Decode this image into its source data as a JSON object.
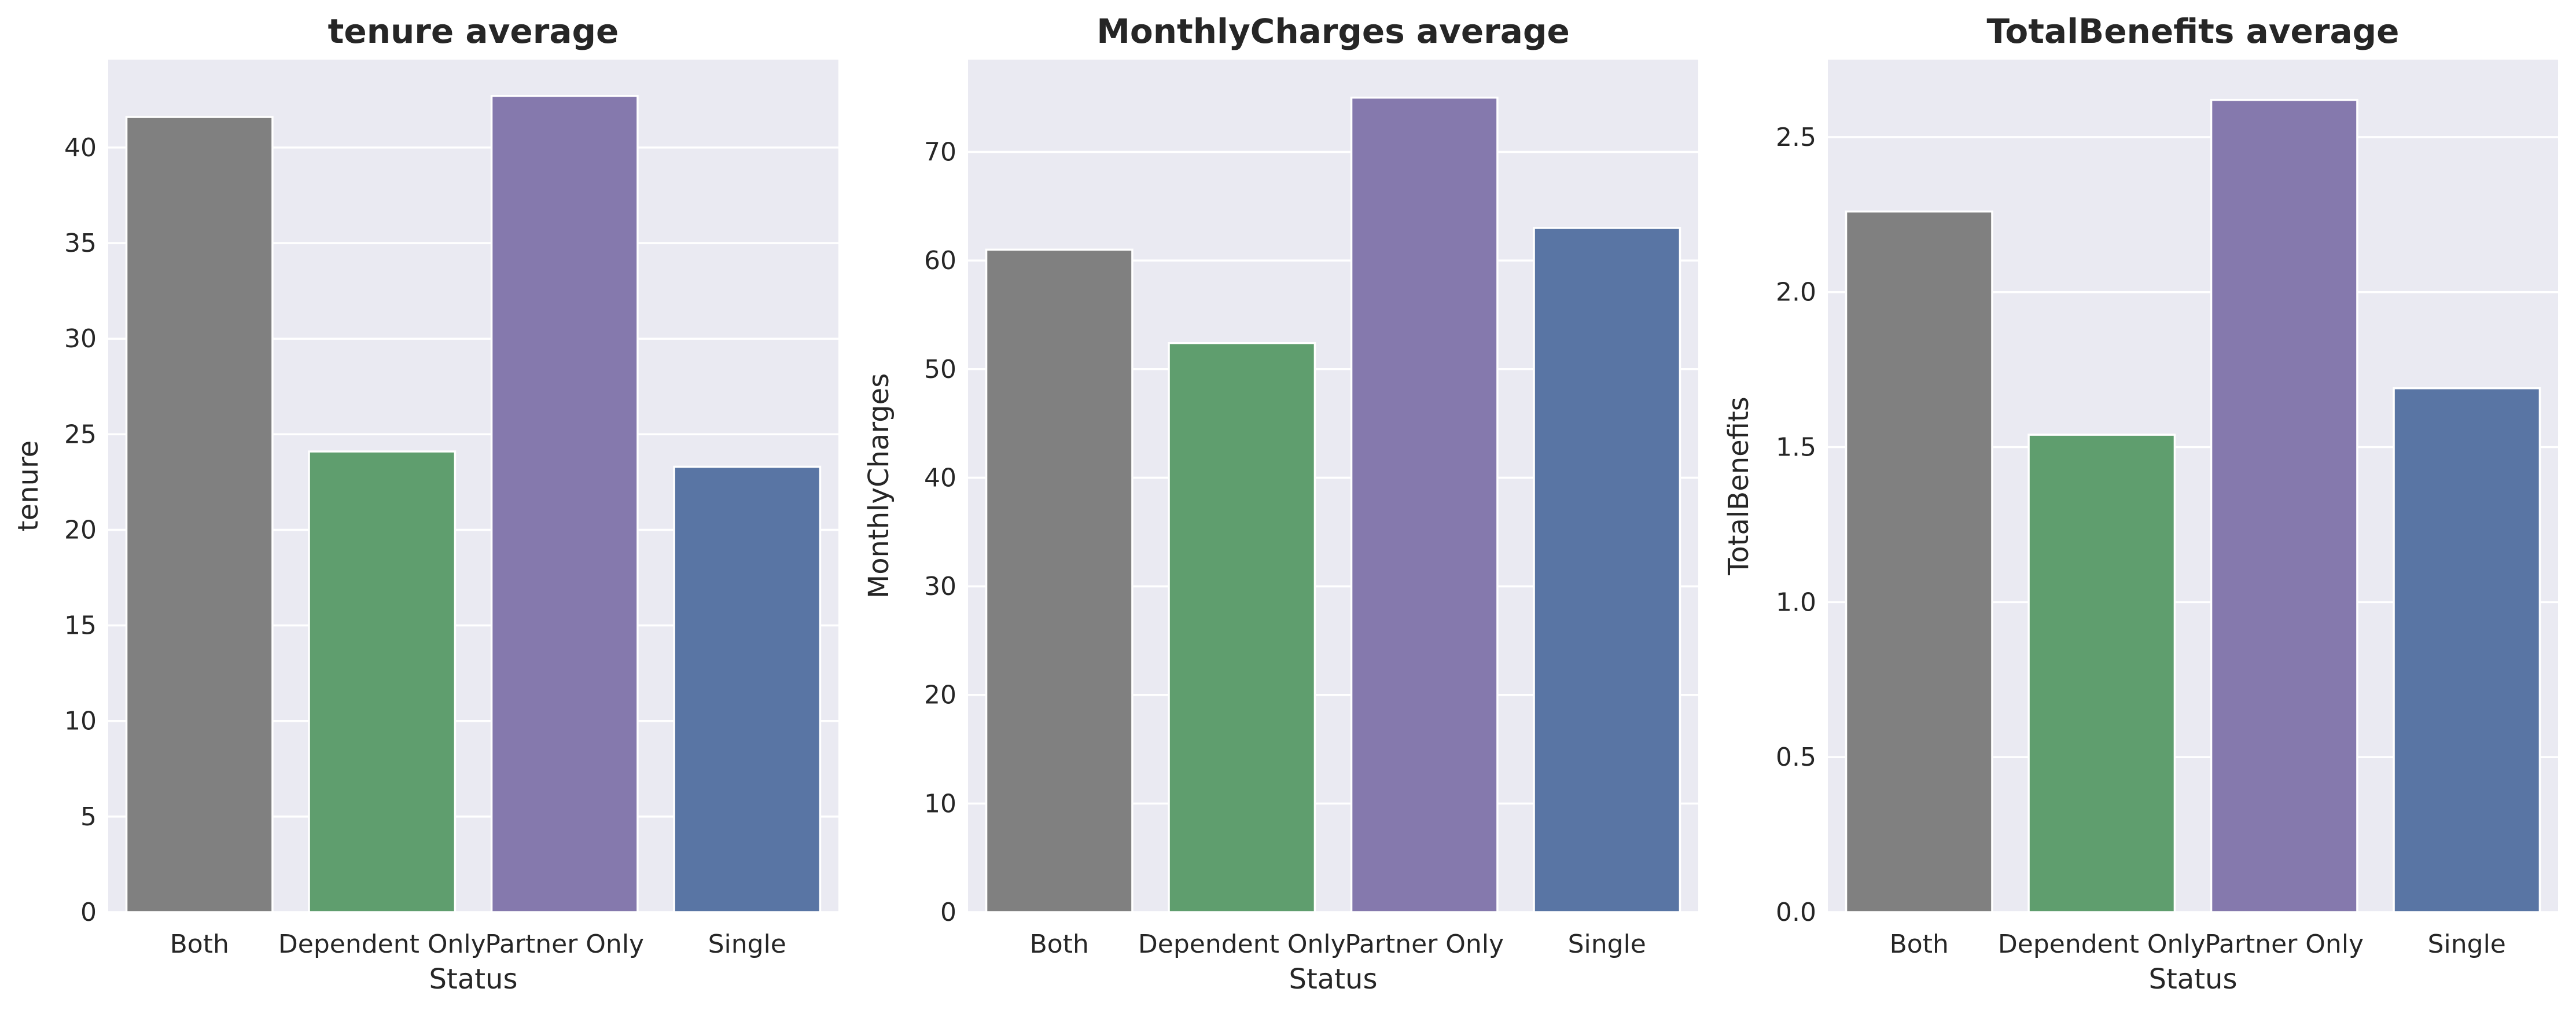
{
  "colors": {
    "panel_background": "#eaeaf2",
    "grid": "#ffffff",
    "text": "#262626"
  },
  "chart_data": [
    {
      "type": "bar",
      "title": "tenure average",
      "xlabel": "Status",
      "ylabel": "tenure",
      "categories": [
        "Both",
        "Dependent Only",
        "Partner Only",
        "Single"
      ],
      "values": [
        41.6,
        24.1,
        42.7,
        23.3
      ],
      "colors": [
        "#808080",
        "#5f9e6e",
        "#8579ad",
        "#5975a4"
      ],
      "ylim": [
        0,
        44.6
      ],
      "yticks": [
        0,
        5,
        10,
        15,
        20,
        25,
        30,
        35,
        40
      ],
      "ytick_labels": [
        "0",
        "5",
        "10",
        "15",
        "20",
        "25",
        "30",
        "35",
        "40"
      ],
      "grid": true,
      "legend": "none"
    },
    {
      "type": "bar",
      "title": "MonthlyCharges average",
      "xlabel": "Status",
      "ylabel": "MonthlyCharges",
      "categories": [
        "Both",
        "Dependent Only",
        "Partner Only",
        "Single"
      ],
      "values": [
        61.0,
        52.4,
        75.0,
        63.0
      ],
      "colors": [
        "#808080",
        "#5f9e6e",
        "#8579ad",
        "#5975a4"
      ],
      "ylim": [
        0,
        78.5
      ],
      "yticks": [
        0,
        10,
        20,
        30,
        40,
        50,
        60,
        70
      ],
      "ytick_labels": [
        "0",
        "10",
        "20",
        "30",
        "40",
        "50",
        "60",
        "70"
      ],
      "grid": true,
      "legend": "none"
    },
    {
      "type": "bar",
      "title": "TotalBenefits average",
      "xlabel": "Status",
      "ylabel": "TotalBenefits",
      "categories": [
        "Both",
        "Dependent Only",
        "Partner Only",
        "Single"
      ],
      "values": [
        2.26,
        1.54,
        2.62,
        1.69
      ],
      "colors": [
        "#808080",
        "#5f9e6e",
        "#8579ad",
        "#5975a4"
      ],
      "ylim": [
        0,
        2.75
      ],
      "yticks": [
        0,
        0.5,
        1.0,
        1.5,
        2.0,
        2.5
      ],
      "ytick_labels": [
        "0.0",
        "0.5",
        "1.0",
        "1.5",
        "2.0",
        "2.5"
      ],
      "grid": true,
      "legend": "none"
    }
  ]
}
